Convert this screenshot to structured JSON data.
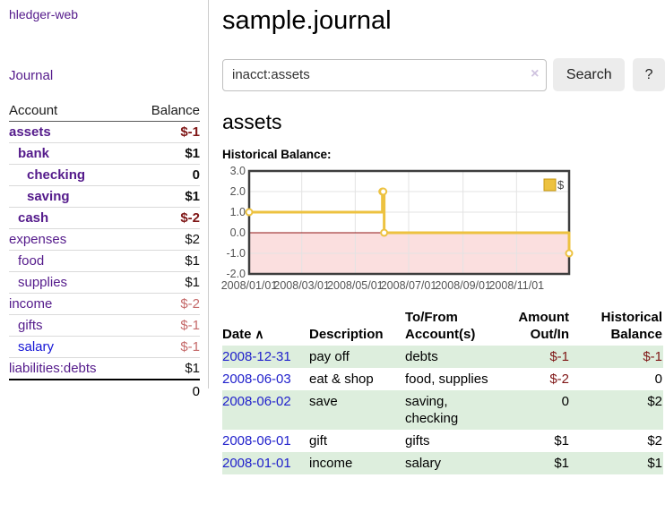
{
  "sidebar": {
    "brand": "hledger-web",
    "journal_link": "Journal",
    "accounts": {
      "col_account": "Account",
      "col_balance": "Balance",
      "rows": [
        {
          "name": "assets",
          "balance": "$-1",
          "indent": 0,
          "bold": true,
          "bal_style": "neg-dark"
        },
        {
          "name": "bank",
          "balance": "$1",
          "indent": 1,
          "bold": true,
          "bal_style": ""
        },
        {
          "name": "checking",
          "balance": "0",
          "indent": 2,
          "bold": true,
          "bal_style": ""
        },
        {
          "name": "saving",
          "balance": "$1",
          "indent": 2,
          "bold": true,
          "bal_style": ""
        },
        {
          "name": "cash",
          "balance": "$-2",
          "indent": 1,
          "bold": true,
          "bal_style": "neg-dark"
        },
        {
          "name": "expenses",
          "balance": "$2",
          "indent": 0,
          "bold": false,
          "bal_style": ""
        },
        {
          "name": "food",
          "balance": "$1",
          "indent": 1,
          "bold": false,
          "bal_style": ""
        },
        {
          "name": "supplies",
          "balance": "$1",
          "indent": 1,
          "bold": false,
          "bal_style": ""
        },
        {
          "name": "income",
          "balance": "$-2",
          "indent": 0,
          "bold": false,
          "bal_style": "neg-light"
        },
        {
          "name": "gifts",
          "balance": "$-1",
          "indent": 1,
          "bold": false,
          "bal_style": "neg-light"
        },
        {
          "name": "salary",
          "balance": "$-1",
          "indent": 1,
          "bold": false,
          "bal_style": "neg-light",
          "blue": true
        },
        {
          "name": "liabilities:debts",
          "balance": "$1",
          "indent": 0,
          "bold": false,
          "bal_style": ""
        }
      ],
      "total": "0"
    }
  },
  "header": {
    "title": "sample.journal"
  },
  "search": {
    "query": "inacct:assets",
    "clear_icon": "×",
    "button_label": "Search",
    "help_label": "?"
  },
  "account_page": {
    "heading": "assets",
    "chart_title": "Historical Balance:"
  },
  "chart_data": {
    "type": "line",
    "title": "Historical Balance",
    "series": [
      {
        "name": "$",
        "color": "#edc240",
        "points": [
          [
            "2008-01-01",
            1
          ],
          [
            "2008-06-01",
            2
          ],
          [
            "2008-06-02",
            2
          ],
          [
            "2008-06-03",
            0
          ],
          [
            "2008-12-31",
            -1
          ]
        ]
      }
    ],
    "xlim": [
      "2008-01-01",
      "2008-12-31"
    ],
    "ylim": [
      -2,
      3
    ],
    "yticks": [
      "3.0",
      "2.0",
      "1.0",
      "0.0",
      "-1.0",
      "-2.0"
    ],
    "xticks": [
      "2008/01/01",
      "2008/03/01",
      "2008/05/01",
      "2008/07/01",
      "2008/09/01",
      "2008/11/01"
    ],
    "legend": "$",
    "legend_position": "top-right",
    "grid": true,
    "colors": {
      "line": "#edc240",
      "marker_fill": "#ffffff",
      "negative_region": "#fbdfdf",
      "zero_line": "#8f1414",
      "plot_border": "#3d3d3d",
      "gridline": "#e3e3e3",
      "tick_text": "#545454"
    }
  },
  "register": {
    "columns": [
      {
        "lines": [
          "Date"
        ],
        "sort": "∧",
        "align": "left"
      },
      {
        "lines": [
          "Description"
        ],
        "align": "left"
      },
      {
        "lines": [
          "To/From",
          "Account(s)"
        ],
        "align": "left"
      },
      {
        "lines": [
          "Amount",
          "Out/In"
        ],
        "align": "right"
      },
      {
        "lines": [
          "Historical",
          "Balance"
        ],
        "align": "right"
      }
    ],
    "rows": [
      {
        "date": "2008-12-31",
        "description": "pay off",
        "accounts": "debts",
        "amount": "$-1",
        "amount_neg": true,
        "balance": "$-1",
        "balance_neg": true,
        "shade": true
      },
      {
        "date": "2008-06-03",
        "description": "eat & shop",
        "accounts": "food, supplies",
        "amount": "$-2",
        "amount_neg": true,
        "balance": "0",
        "balance_neg": false,
        "shade": false
      },
      {
        "date": "2008-06-02",
        "description": "save",
        "accounts": "saving, checking",
        "amount": "0",
        "amount_neg": false,
        "balance": "$2",
        "balance_neg": false,
        "shade": true
      },
      {
        "date": "2008-06-01",
        "description": "gift",
        "accounts": "gifts",
        "amount": "$1",
        "amount_neg": false,
        "balance": "$2",
        "balance_neg": false,
        "shade": false
      },
      {
        "date": "2008-01-01",
        "description": "income",
        "accounts": "salary",
        "amount": "$1",
        "amount_neg": false,
        "balance": "$1",
        "balance_neg": false,
        "shade": true
      }
    ]
  }
}
